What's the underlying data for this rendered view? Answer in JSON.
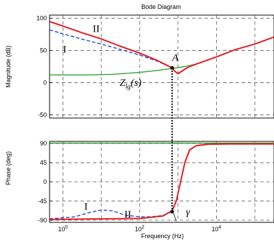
{
  "chart_data": [
    {
      "panel": "magnitude",
      "type": "line",
      "title": "Bode Diagram",
      "ylabel": "Magnitude (dB)",
      "xscale": "log",
      "xlim": [
        0.45,
        316228
      ],
      "ylim": [
        -55,
        105
      ],
      "yticks": [
        -50,
        0,
        50,
        100
      ],
      "grid": true,
      "series": [
        {
          "name": "II",
          "color": "#e41a1c",
          "style": "solid",
          "x": [
            0.45,
            1,
            3,
            10,
            30,
            100,
            300,
            700,
            850,
            1000,
            1200,
            1500,
            2000,
            3000,
            10000,
            30000,
            100000,
            316228
          ],
          "y": [
            95,
            88,
            78,
            68,
            57,
            46,
            34,
            23,
            17,
            14,
            17,
            21,
            25,
            29,
            40,
            51,
            60,
            71
          ]
        },
        {
          "name": "I",
          "color": "#1f3fd9",
          "style": "dashed",
          "x": [
            0.45,
            1,
            3,
            10,
            30,
            100,
            300,
            700
          ],
          "y": [
            82,
            76,
            68,
            60,
            52,
            43,
            33,
            23
          ]
        },
        {
          "name": "Z_lg(s)",
          "color": "#2ca02c",
          "style": "solid",
          "x": [
            0.45,
            5,
            20,
            100,
            300,
            700,
            1500,
            3000
          ],
          "y": [
            12,
            12,
            13,
            16,
            19,
            22,
            25,
            29
          ]
        }
      ],
      "annotations": [
        {
          "text": "II",
          "x": 6,
          "y": 79
        },
        {
          "text": "I",
          "x": 1,
          "y": 47
        },
        {
          "text": "A",
          "x": 700,
          "y": 34
        },
        {
          "text": "Z",
          "sub": "lg",
          "suffix": "(s)",
          "x": 30,
          "y": -5
        }
      ],
      "markers": [
        {
          "name": "A",
          "x": 700,
          "y": 23
        }
      ]
    },
    {
      "panel": "phase",
      "type": "line",
      "xlabel": "Frequency  (Hz)",
      "ylabel": "Phase (deg)",
      "xscale": "log",
      "xlim": [
        0.45,
        316228
      ],
      "ylim": [
        -95,
        95
      ],
      "yticks": [
        -90,
        -45,
        0,
        45,
        90
      ],
      "xticks": [
        {
          "base": "10",
          "exp": "0"
        },
        {
          "base": "10",
          "exp": "2"
        },
        {
          "base": "10",
          "exp": "4"
        }
      ],
      "grid": true,
      "series": [
        {
          "name": "II",
          "color": "#e41a1c",
          "style": "solid",
          "x": [
            0.45,
            10,
            100,
            400,
            700,
            900,
            1200,
            1500,
            2000,
            3000,
            6000,
            20000,
            316228
          ],
          "y": [
            -88,
            -87,
            -86,
            -80,
            -68,
            -45,
            5,
            45,
            75,
            85,
            88,
            89,
            89
          ]
        },
        {
          "name": "I",
          "color": "#1f3fd9",
          "style": "dashed",
          "x": [
            0.45,
            2,
            5,
            10,
            20,
            40,
            100,
            200,
            400,
            700
          ],
          "y": [
            -87,
            -82,
            -72,
            -66,
            -68,
            -78,
            -82,
            -82,
            -79,
            -69
          ]
        },
        {
          "name": "Z_lg(s)",
          "color": "#2ca02c",
          "style": "solid",
          "x": [
            0.45,
            316228
          ],
          "y": [
            91,
            91
          ]
        }
      ],
      "annotations": [
        {
          "text": "I",
          "x": 3.6,
          "y": -65
        },
        {
          "text": "II",
          "x": 40,
          "y": -84
        },
        {
          "text": "γ",
          "x": 1600,
          "y": -78
        }
      ],
      "markers": [
        {
          "name": "crossing",
          "x": 700,
          "y": -70
        }
      ]
    }
  ]
}
